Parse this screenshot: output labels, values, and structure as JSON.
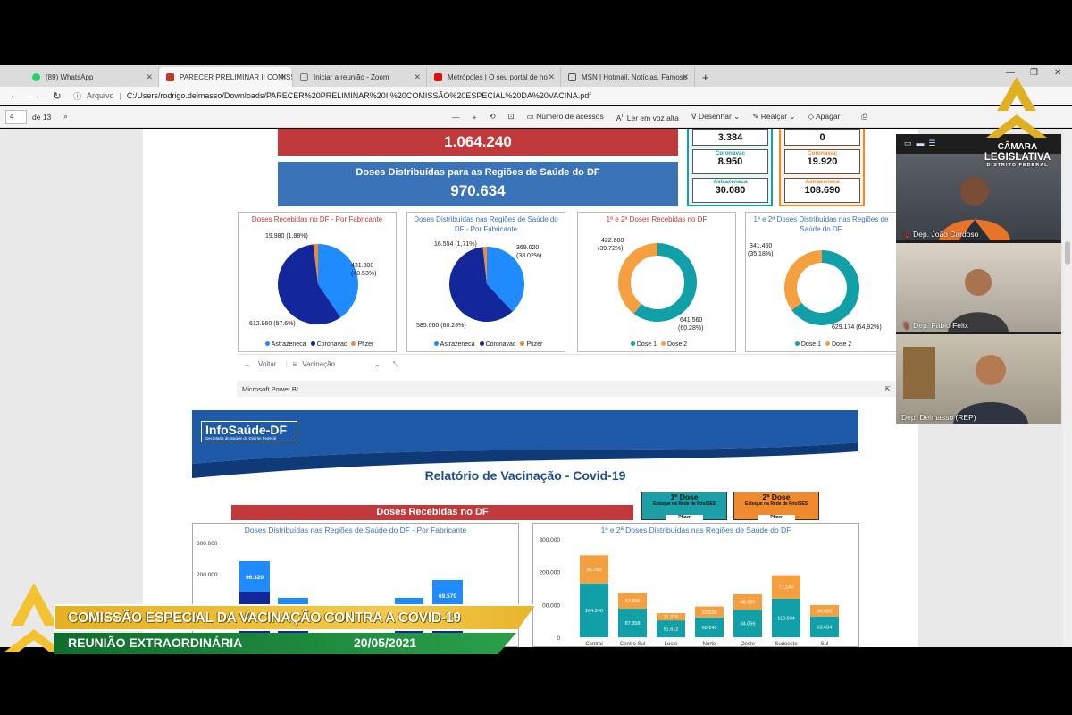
{
  "browser": {
    "tabs": [
      {
        "label": "(89) WhatsApp",
        "color": "#25d366"
      },
      {
        "label": "PARECER PRELIMINAR II COMISS",
        "color": "#c0392b"
      },
      {
        "label": "Iniciar a reunião - Zoom",
        "color": "#999999"
      },
      {
        "label": "Metrópoles | O seu portal de no",
        "color": "#d11"
      },
      {
        "label": "MSN | Hotmail, Notícias, Famoso",
        "color": "#555"
      }
    ],
    "address_prefix": "Arquivo",
    "address": "C:/Users/rodrigo.delmasso/Downloads/PARECER%20PRELIMINAR%20II%20COMISSÃO%20ESPECIAL%20DA%20VACINA.pdf"
  },
  "pdf_toolbar": {
    "page_value": "4",
    "page_total": "de 13",
    "access_label": "Número de acessos",
    "read_aloud_label": "Ler em voz alta",
    "draw_label": "Desenhar",
    "highlight_label": "Realçar",
    "erase_label": "Apagar"
  },
  "dashboard": {
    "total_received": "1.064.240",
    "distributed_title": "Doses Distribuídas para as Regiões de Saúde do DF",
    "distributed_value": "970.634",
    "stock_left": [
      {
        "label": "",
        "value": "3.384"
      },
      {
        "label": "Coronavac",
        "value": "8.950"
      },
      {
        "label": "Astrazeneca",
        "value": "30.080"
      }
    ],
    "stock_right": [
      {
        "label": "",
        "value": "0"
      },
      {
        "label": "Coronavac",
        "value": "19.920"
      },
      {
        "label": "Astrazeneca",
        "value": "108.690"
      }
    ],
    "panels": [
      {
        "title": "Doses Recebidas no DF - Por Fabricante",
        "labels": [
          "19.980 (1.88%)",
          "431.300",
          "(40.53%)",
          "612.960 (57.6%)"
        ],
        "legend": [
          "Astrazeneca",
          "Coronavac",
          "Pfizer"
        ]
      },
      {
        "title": "Doses Distribuídas nas Regiões de Saúde do DF - Por Fabricante",
        "labels": [
          "16.554 (1,71%)",
          "369.020",
          "(38.02%)",
          "585.060 (60.28%)"
        ],
        "legend": [
          "Astrazeneca",
          "Coronavac",
          "Pfizer"
        ]
      },
      {
        "title": "1ª e 2ª Doses Recebidas no DF",
        "labels": [
          "422.680",
          "(39.72%)",
          "641.560",
          "(60.28%)"
        ],
        "legend": [
          "Dose 1",
          "Dose 2"
        ]
      },
      {
        "title": "1ª e 2ª Doses Distribuídas nas Regiões de Saúde do DF",
        "labels": [
          "341.460",
          "(35,18%)",
          "629.174 (64,82%)"
        ],
        "legend": [
          "Dose 1",
          "Dose 2"
        ]
      }
    ],
    "nav_back": "Voltar",
    "nav_page": "Vacinação",
    "footer": "Microsoft Power BI"
  },
  "report": {
    "logo": "InfoSaúde-DF",
    "logo_sub": "Secretaria de Saúde do Distrito Federal",
    "title": "Relatório de Vacinação - Covid-19",
    "dose1_title": "1ª Dose",
    "dose2_title": "2ª Dose",
    "dose_sub": "Estoque na Rede de Frio/SES",
    "dose_pfizer": "Pfizer",
    "received_title": "Doses Recebidas no DF",
    "left_chart_title": "Doses Distribuídas nas Regiões de Saúde do DF - Por Fabricante",
    "right_chart_title": "1ª e 2ª Doses Distribuídas nas Regiões de Saúde do DF"
  },
  "chart_data": [
    {
      "type": "pie",
      "title": "Doses Recebidas no DF - Por Fabricante",
      "categories": [
        "Astrazeneca",
        "Coronavac",
        "Pfizer"
      ],
      "values": [
        431300,
        612960,
        19980
      ],
      "colors": [
        "#1f8bff",
        "#13279b",
        "#f0883a"
      ]
    },
    {
      "type": "pie",
      "title": "Doses Distribuídas nas Regiões de Saúde do DF - Por Fabricante",
      "categories": [
        "Astrazeneca",
        "Coronavac",
        "Pfizer"
      ],
      "values": [
        369020,
        585060,
        16554
      ],
      "colors": [
        "#1f8bff",
        "#13279b",
        "#f0883a"
      ]
    },
    {
      "type": "pie",
      "title": "1ª e 2ª Doses Recebidas no DF",
      "categories": [
        "Dose 1",
        "Dose 2"
      ],
      "values": [
        641560,
        422680
      ],
      "colors": [
        "#12a0a8",
        "#f5a040"
      ]
    },
    {
      "type": "pie",
      "title": "1ª e 2ª Doses Distribuídas nas Regiões de Saúde do DF",
      "categories": [
        "Dose 1",
        "Dose 2"
      ],
      "values": [
        629174,
        341460
      ],
      "colors": [
        "#12a0a8",
        "#f5a040"
      ]
    },
    {
      "type": "bar",
      "title": "1ª e 2ª Doses Distribuídas nas Regiões de Saúde do DF",
      "categories": [
        "Central",
        "Centro Sul",
        "Leste",
        "Norte",
        "Oeste",
        "Sudoeste",
        "Sul"
      ],
      "series": [
        {
          "name": "Dose 1",
          "values": [
            164240,
            87358,
            51612,
            60240,
            84056,
            118034,
            63634
          ]
        },
        {
          "name": "Dose 2",
          "values": [
            85780,
            47800,
            21970,
            33520,
            46930,
            71140,
            34520
          ]
        }
      ],
      "yticks": [
        "0",
        "00.000",
        "200.000",
        "300.000"
      ],
      "ylim": [
        0,
        300000
      ]
    },
    {
      "type": "bar",
      "title": "Doses Distribuídas nas Regiões de Saúde do DF - Por Fabricante",
      "visible_labels": [
        "96.320",
        "69.570"
      ],
      "yticks": [
        "300.000",
        "200.000"
      ]
    }
  ],
  "video": {
    "participants": [
      "Dep. João Cardoso",
      "Dep. Fábio Felix",
      "Dep. Delmasso (REP)"
    ]
  },
  "camara": {
    "line1": "CÂMARA",
    "line2": "LEGISLATIVA",
    "line3": "DISTRITO FEDERAL"
  },
  "lower_third": {
    "title": "COMISSÃO ESPECIAL DA VACINAÇÃO CONTRA A COVID-19",
    "subtitle": "REUNIÃO EXTRAORDINÁRIA",
    "date": "20/05/2021"
  }
}
